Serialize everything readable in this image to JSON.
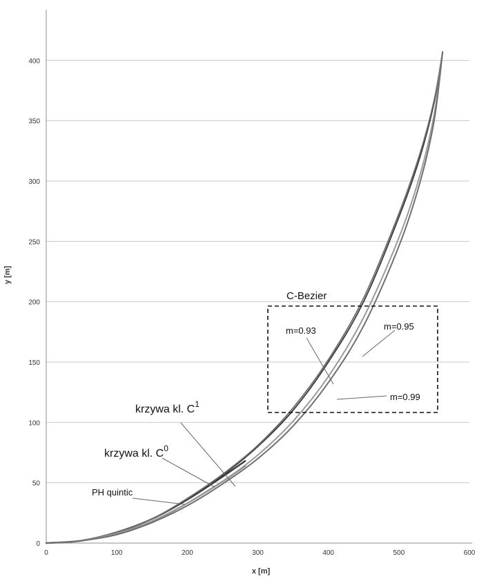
{
  "chart_data": {
    "type": "line",
    "title": "",
    "xlabel": "x [m]",
    "ylabel": "y [m]",
    "xlim": [
      0,
      600
    ],
    "ylim": [
      0,
      450
    ],
    "xticks": [
      0,
      100,
      200,
      300,
      400,
      500,
      600
    ],
    "yticks": [
      0,
      50,
      100,
      150,
      200,
      250,
      300,
      350,
      400
    ],
    "grid": "horizontal",
    "colors": {
      "grid": "#c8c8c8",
      "axis": "#8c8c8c",
      "series_dark": "#3a3a3a",
      "series_mid": "#6e6e6e",
      "series_light": "#9a9a9a"
    },
    "series": [
      {
        "name": "krzywa kl. C^1",
        "x": [
          0,
          50,
          100,
          150,
          200,
          250,
          282
        ],
        "y": [
          0,
          2,
          9,
          20,
          36,
          55,
          68
        ]
      },
      {
        "name": "krzywa kl. C^0",
        "x": [
          0,
          50,
          100,
          150,
          200,
          250,
          282
        ],
        "y": [
          0,
          2,
          8,
          18,
          33,
          51,
          64
        ]
      },
      {
        "name": "PH quintic",
        "x": [
          0,
          50,
          100,
          150,
          200,
          250,
          300,
          350,
          400,
          450,
          500,
          530,
          550,
          562
        ],
        "y": [
          0,
          2,
          9,
          20,
          36,
          56,
          80,
          110,
          150,
          200,
          270,
          320,
          365,
          407
        ]
      },
      {
        "name": "m=0.93",
        "x": [
          0,
          50,
          100,
          150,
          200,
          250,
          300,
          350,
          400,
          450,
          500,
          530,
          550,
          562
        ],
        "y": [
          0,
          2,
          9,
          20,
          37,
          57,
          81,
          112,
          152,
          203,
          273,
          323,
          367,
          407
        ]
      },
      {
        "name": "m=0.95",
        "x": [
          0,
          50,
          100,
          150,
          200,
          250,
          300,
          350,
          400,
          450,
          500,
          530,
          550,
          562
        ],
        "y": [
          0,
          2,
          8,
          18,
          33,
          51,
          73,
          101,
          138,
          187,
          253,
          305,
          355,
          407
        ]
      },
      {
        "name": "m=0.99",
        "x": [
          0,
          50,
          100,
          150,
          200,
          250,
          300,
          350,
          400,
          450,
          500,
          530,
          550,
          562
        ],
        "y": [
          0,
          2,
          7,
          17,
          31,
          49,
          70,
          97,
          133,
          180,
          246,
          299,
          350,
          407
        ]
      }
    ],
    "annotations": {
      "c_bezier": "C-Bezier",
      "c1_base": "krzywa kl. C",
      "c1_sup": "1",
      "c0_base": "krzywa kl. C",
      "c0_sup": "0",
      "ph": "PH quintic",
      "m093": "m=0.93",
      "m095": "m=0.95",
      "m099": "m=0.99"
    }
  }
}
